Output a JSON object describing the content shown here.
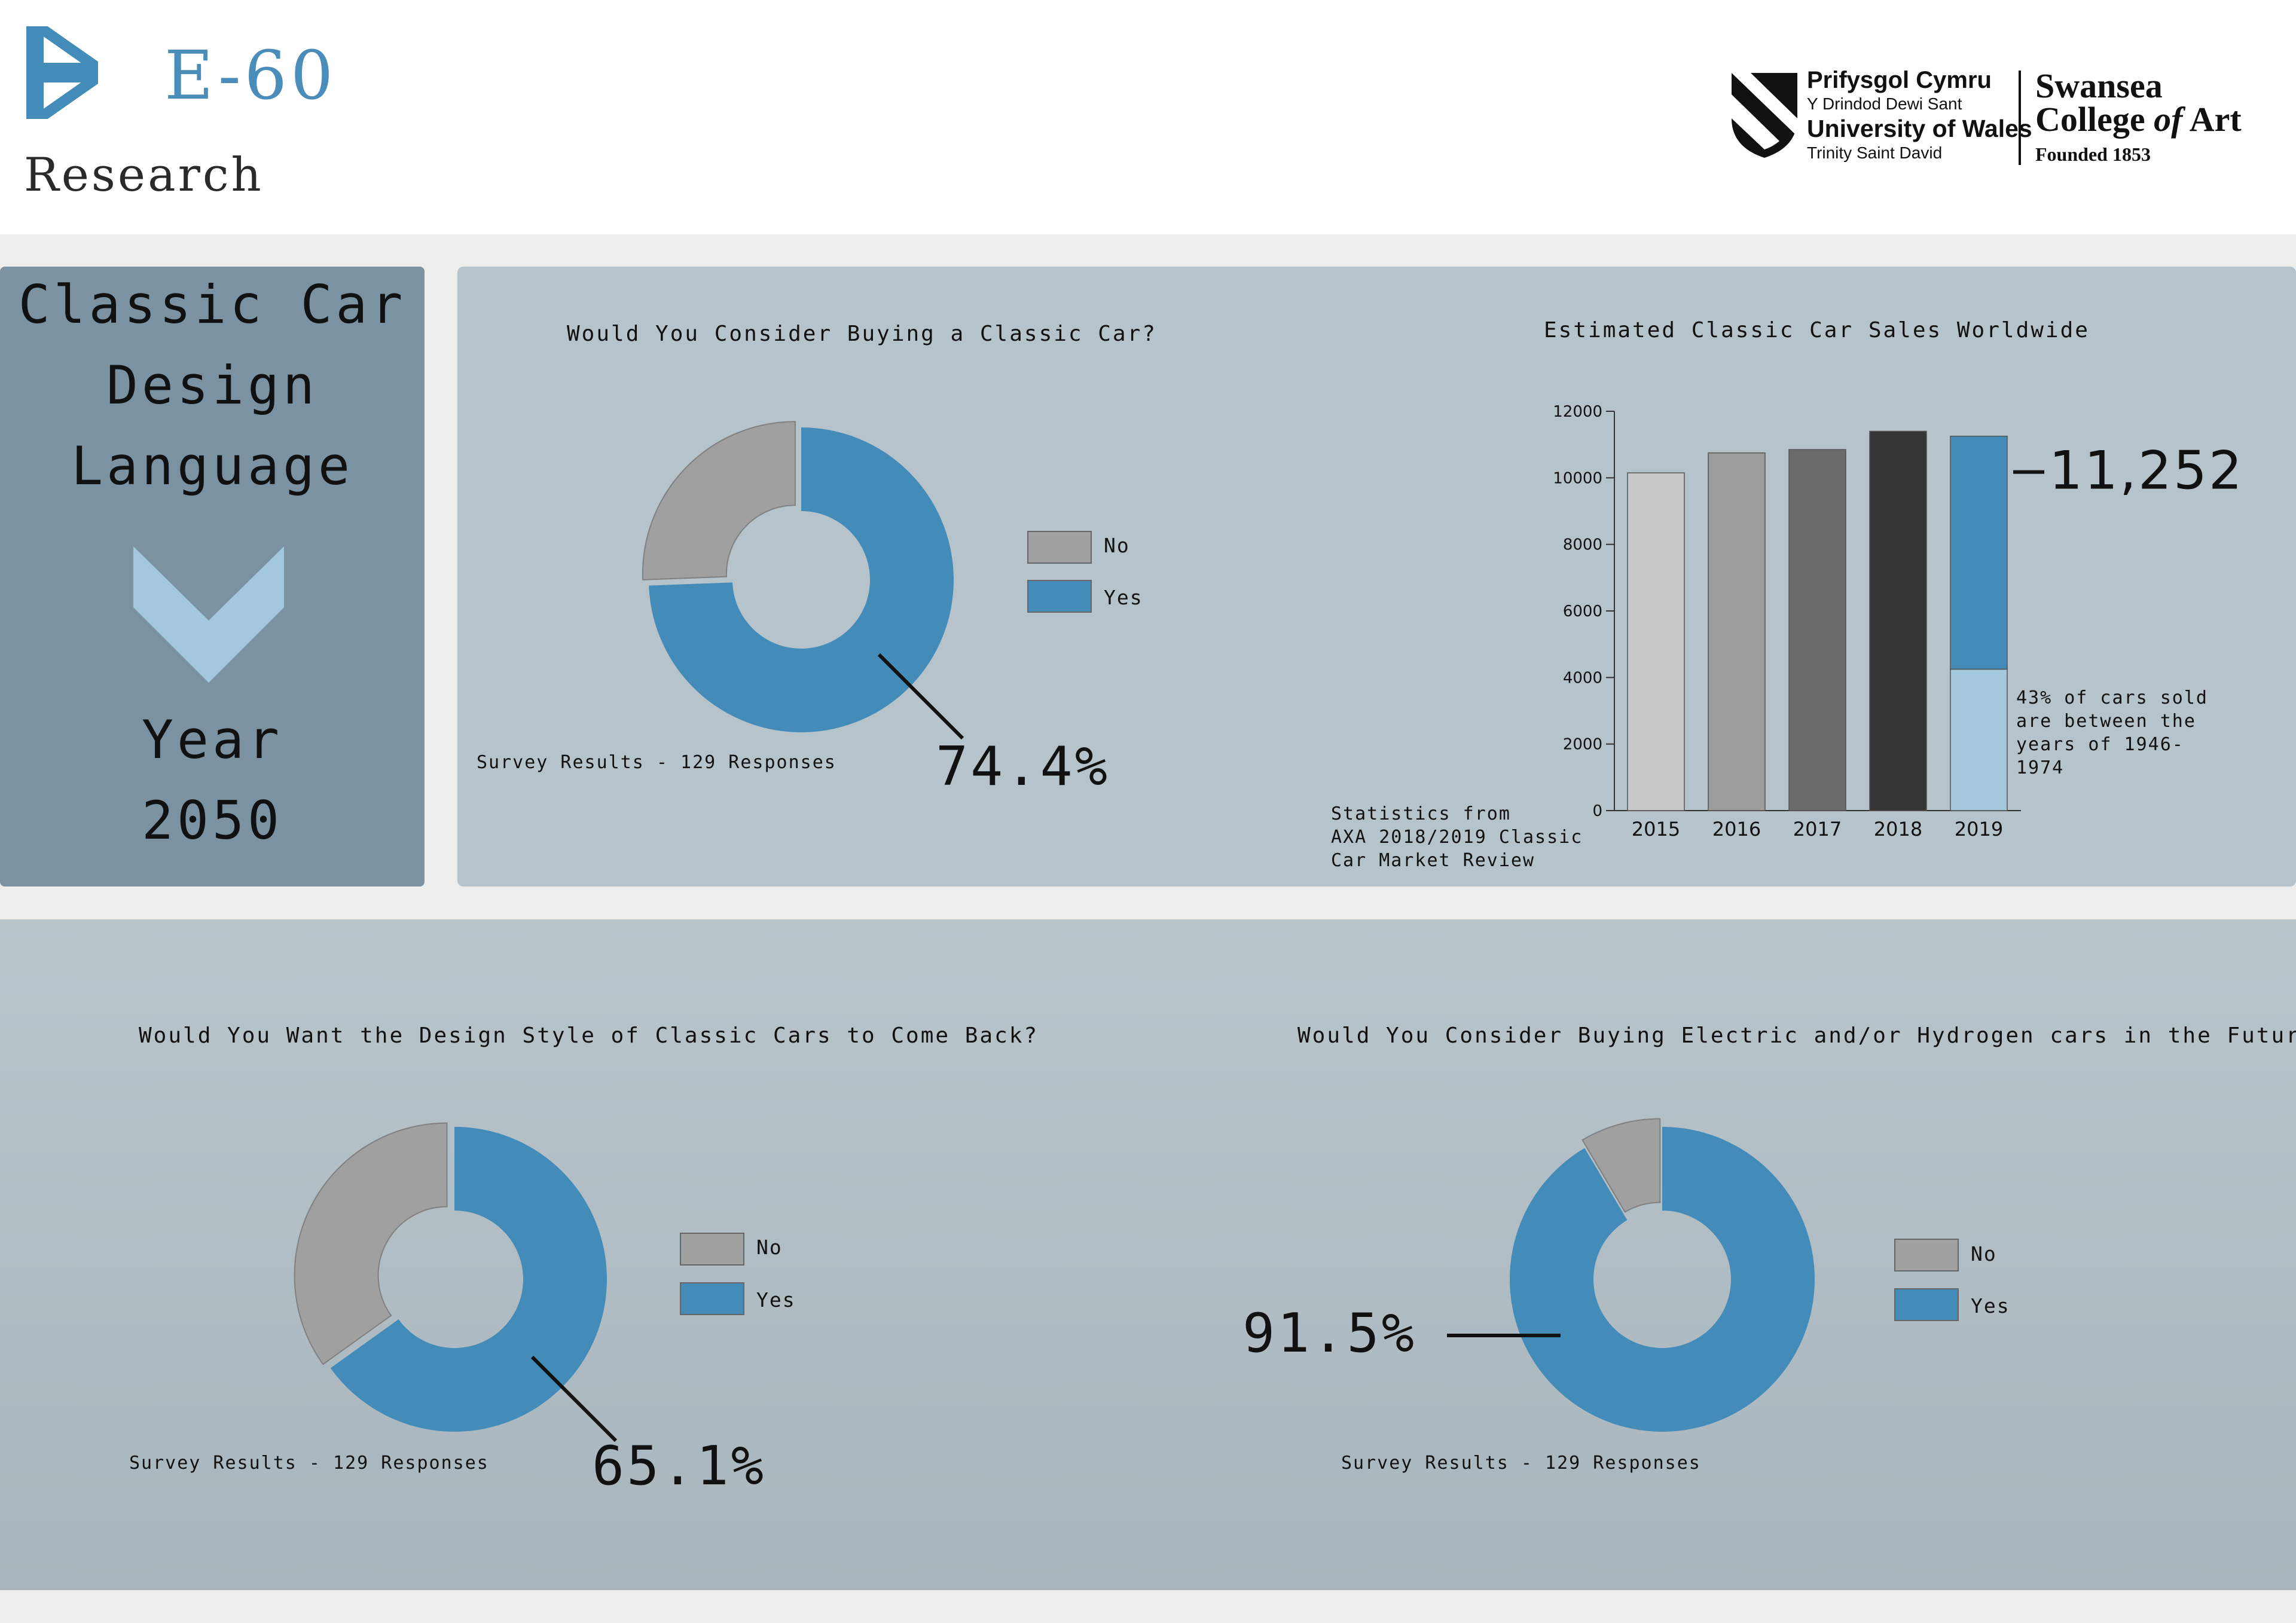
{
  "header": {
    "brand_name": "E-60",
    "brand_sub": "Research",
    "university": {
      "line1": "Prifysgol Cymru",
      "line2": "Y Drindod Dewi Sant",
      "line3": "University of Wales",
      "line4": "Trinity Saint David"
    },
    "college": {
      "line1": "Swansea",
      "line2_a": "College ",
      "line2_b": "of",
      "line2_c": " Art",
      "line3": "Founded 1853"
    }
  },
  "title_panel": {
    "line1": "Classic Car",
    "line2": "Design",
    "line3": "Language",
    "line4": "Year",
    "line5": "2050"
  },
  "colors": {
    "yes": "#438bb9",
    "no": "#a0a0a0",
    "chevron": "#a3c8dd"
  },
  "chart_data": [
    {
      "type": "pie",
      "title": "Would You Consider Buying a Classic Car?",
      "labels": [
        "No",
        "Yes"
      ],
      "values": [
        25.6,
        74.4
      ],
      "callout": "74.4%",
      "note": "Survey Results - 129 Responses",
      "legend": "right"
    },
    {
      "type": "bar",
      "title": "Estimated Classic Car Sales Worldwide",
      "categories": [
        "2015",
        "2016",
        "2017",
        "2018",
        "2019"
      ],
      "values": [
        10150,
        10750,
        10850,
        11400,
        11252
      ],
      "segment_2019": {
        "lower": 4250,
        "note": "43% of cars sold are between the years of 1946-1974"
      },
      "yticks": [
        "0",
        "2000",
        "4000",
        "6000",
        "8000",
        "10000",
        "12000"
      ],
      "ylim": [
        0,
        12000
      ],
      "callout": "11,252",
      "source": [
        "Statistics from",
        "AXA 2018/2019 Classic",
        "Car Market Review"
      ]
    },
    {
      "type": "pie",
      "title": "Would You Want the Design Style of Classic Cars to Come Back?",
      "labels": [
        "No",
        "Yes"
      ],
      "values": [
        34.9,
        65.1
      ],
      "callout": "65.1%",
      "note": "Survey Results - 129 Responses",
      "legend": "right"
    },
    {
      "type": "pie",
      "title": "Would You Consider Buying Electric and/or Hydrogen cars in the Future?",
      "labels": [
        "No",
        "Yes"
      ],
      "values": [
        8.5,
        91.5
      ],
      "callout": "91.5%",
      "note": "Survey Results - 129 Responses",
      "legend": "right"
    }
  ]
}
